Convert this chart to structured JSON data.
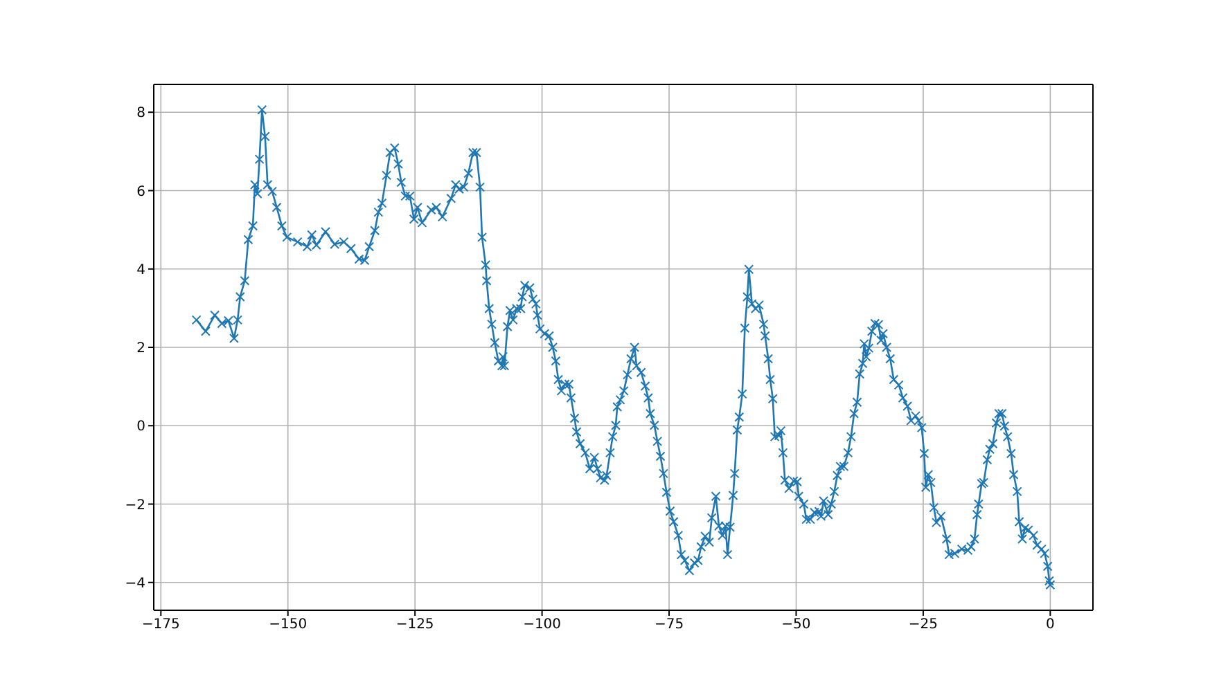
{
  "chart_data": {
    "type": "line",
    "marker": "cross",
    "line_style": "solid",
    "grid": true,
    "legend": false,
    "xlim": [
      -176.4,
      8.4
    ],
    "ylim": [
      -4.71,
      8.71
    ],
    "xticks": [
      -175,
      -150,
      -125,
      -100,
      -75,
      -50,
      -25,
      0
    ],
    "yticks": [
      -4,
      -2,
      0,
      2,
      4,
      6,
      8
    ],
    "series": [
      {
        "color": "#1f77b4",
        "x": [
          -168,
          -166.2,
          -164.4,
          -163,
          -161.7,
          -160.6,
          -159.9,
          -159.4,
          -158.5,
          -157.8,
          -156.9,
          -156.5,
          -156,
          -155.6,
          -155.1,
          -154.5,
          -154,
          -153.1,
          -152.2,
          -151.2,
          -150.2,
          -148.1,
          -146.2,
          -145.3,
          -144.4,
          -142.6,
          -140.8,
          -139,
          -137.6,
          -136,
          -134.9,
          -134,
          -132.9,
          -132.2,
          -131.5,
          -130.6,
          -129.9,
          -129,
          -128.3,
          -127.7,
          -126.9,
          -126,
          -125.2,
          -124.5,
          -123.6,
          -121.8,
          -120.8,
          -119.6,
          -117.9,
          -117,
          -116.3,
          -115.4,
          -114.5,
          -113.6,
          -112.9,
          -112.2,
          -111.8,
          -111.1,
          -110.9,
          -110.4,
          -109.9,
          -109.3,
          -108.6,
          -107.9,
          -107.7,
          -107.4,
          -106.8,
          -106.3,
          -105.7,
          -105,
          -104.2,
          -103.9,
          -103.4,
          -102.4,
          -101.8,
          -101.2,
          -100.9,
          -100.4,
          -99.5,
          -98.6,
          -97.9,
          -97.3,
          -96.8,
          -96.2,
          -95.5,
          -94.7,
          -94.3,
          -93.6,
          -93.2,
          -92.5,
          -91.5,
          -90.6,
          -89.7,
          -89.1,
          -88.5,
          -87.7,
          -87.3,
          -86.6,
          -86.1,
          -85.5,
          -85.2,
          -84.6,
          -83.9,
          -83.2,
          -82.5,
          -81.8,
          -81.4,
          -80.5,
          -79.7,
          -79.1,
          -78.7,
          -77.9,
          -77.3,
          -76.7,
          -76.1,
          -75.5,
          -74.8,
          -74.1,
          -73.2,
          -72.6,
          -71.9,
          -71,
          -70,
          -69.3,
          -68.7,
          -67.9,
          -67.1,
          -66.6,
          -65.8,
          -65.2,
          -64.5,
          -63.9,
          -63.5,
          -63,
          -62.4,
          -62.1,
          -61.6,
          -61.2,
          -60.6,
          -60.1,
          -59.6,
          -59.3,
          -58.7,
          -58,
          -57.3,
          -56.4,
          -56.1,
          -55.5,
          -55.1,
          -54.6,
          -54.2,
          -53.4,
          -53,
          -52.6,
          -52.2,
          -51.4,
          -50.5,
          -49.8,
          -49.5,
          -48.5,
          -48,
          -47.2,
          -46.4,
          -45.5,
          -45.1,
          -44.6,
          -43.7,
          -43.1,
          -42.5,
          -41.9,
          -41.3,
          -40.6,
          -39.8,
          -39.2,
          -38.6,
          -38,
          -37.5,
          -36.9,
          -36.6,
          -36.2,
          -35.7,
          -35.1,
          -34.5,
          -33.8,
          -33.3,
          -32.9,
          -32.2,
          -31.5,
          -30.8,
          -29.8,
          -29,
          -28.1,
          -27.4,
          -26.5,
          -25.9,
          -25.3,
          -24.8,
          -24.5,
          -24,
          -23.5,
          -22.9,
          -22.4,
          -21.5,
          -20.4,
          -19.9,
          -18.8,
          -17.4,
          -16.2,
          -15.6,
          -14.9,
          -14.4,
          -14.1,
          -13.5,
          -13.1,
          -12.4,
          -11.9,
          -11.3,
          -10.6,
          -10.1,
          -9.5,
          -9,
          -8.4,
          -7.7,
          -7.2,
          -6.5,
          -6.1,
          -5.5,
          -5,
          -4.3,
          -3.3,
          -2.6,
          -1.7,
          -1.1,
          -0.5,
          -0.2,
          0
        ],
        "values": [
          2.7,
          2.41,
          2.82,
          2.61,
          2.68,
          2.23,
          2.7,
          3.29,
          3.7,
          4.75,
          5.1,
          6.15,
          5.92,
          6.8,
          8.06,
          7.38,
          6.15,
          5.98,
          5.57,
          5.1,
          4.81,
          4.69,
          4.57,
          4.87,
          4.61,
          4.95,
          4.63,
          4.69,
          4.52,
          4.25,
          4.22,
          4.57,
          4.98,
          5.45,
          5.68,
          6.39,
          6.97,
          7.09,
          6.68,
          6.21,
          5.86,
          5.86,
          5.27,
          5.57,
          5.18,
          5.51,
          5.57,
          5.33,
          5.8,
          6.15,
          6.04,
          6.09,
          6.44,
          6.97,
          6.97,
          6.09,
          4.81,
          4.1,
          3.7,
          2.99,
          2.59,
          2.12,
          1.65,
          1.53,
          1.76,
          1.53,
          2.53,
          2.94,
          2.7,
          2.99,
          2.99,
          3.29,
          3.58,
          3.52,
          3.23,
          3.11,
          2.82,
          2.47,
          2.35,
          2.29,
          2.0,
          1.65,
          1.18,
          0.89,
          1.06,
          1.06,
          0.71,
          0.19,
          -0.16,
          -0.46,
          -0.69,
          -1.1,
          -0.81,
          -1.1,
          -1.33,
          -1.39,
          -1.27,
          -0.69,
          -0.28,
          0.01,
          0.48,
          0.66,
          0.89,
          1.3,
          1.71,
          2.0,
          1.53,
          1.36,
          1.01,
          0.71,
          0.31,
          0.01,
          -0.4,
          -0.78,
          -1.22,
          -1.7,
          -2.18,
          -2.45,
          -2.8,
          -3.29,
          -3.44,
          -3.7,
          -3.5,
          -3.44,
          -3.09,
          -2.82,
          -2.97,
          -2.35,
          -1.8,
          -2.56,
          -2.8,
          -2.56,
          -3.29,
          -2.59,
          -1.78,
          -1.22,
          -0.11,
          0.22,
          0.81,
          2.49,
          3.29,
          3.99,
          3.11,
          2.99,
          3.08,
          2.59,
          2.29,
          1.71,
          1.18,
          0.69,
          -0.28,
          -0.25,
          -0.13,
          -0.69,
          -1.39,
          -1.6,
          -1.41,
          -1.43,
          -1.8,
          -2.0,
          -2.39,
          -2.39,
          -2.21,
          -2.19,
          -2.31,
          -1.92,
          -2.27,
          -2.0,
          -1.68,
          -1.27,
          -1.04,
          -1.04,
          -0.69,
          -0.28,
          0.31,
          0.6,
          1.32,
          1.59,
          2.09,
          1.76,
          1.98,
          2.41,
          2.61,
          2.58,
          2.18,
          2.35,
          2.0,
          1.71,
          1.18,
          1.04,
          0.71,
          0.5,
          0.13,
          0.25,
          0.13,
          -0.05,
          -0.71,
          -1.57,
          -1.25,
          -1.45,
          -2.09,
          -2.47,
          -2.31,
          -2.89,
          -3.29,
          -3.26,
          -3.15,
          -3.18,
          -3.09,
          -2.89,
          -2.27,
          -2.0,
          -1.48,
          -1.45,
          -0.87,
          -0.6,
          -0.46,
          0.07,
          0.31,
          0.31,
          -0.01,
          -0.28,
          -0.71,
          -1.25,
          -1.68,
          -2.45,
          -2.89,
          -2.62,
          -2.66,
          -2.8,
          -3.05,
          -3.15,
          -3.26,
          -3.59,
          -3.96,
          -4.06
        ]
      }
    ]
  }
}
